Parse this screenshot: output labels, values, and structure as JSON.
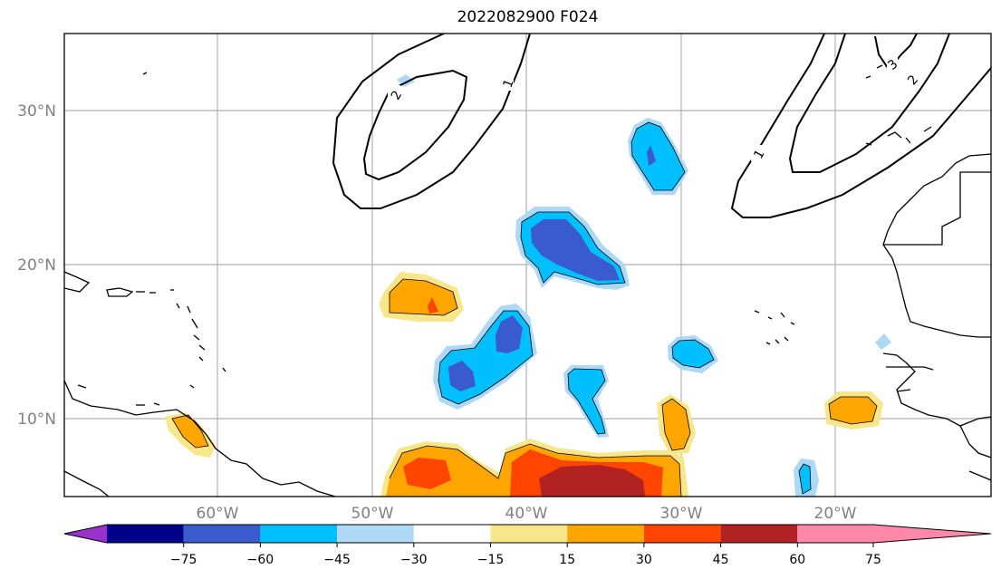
{
  "map": {
    "title": "2022082900 F024",
    "lat_labels": [
      "30°N",
      "20°N",
      "10°N"
    ],
    "lon_labels": [
      "60°W",
      "50°W",
      "40°W",
      "30°W",
      "20°W"
    ],
    "contour_labels": [
      "2",
      "1",
      "1",
      "2",
      "3"
    ]
  },
  "colorbar": {
    "ticks": [
      "−75",
      "−60",
      "−45",
      "−30",
      "−15",
      "15",
      "30",
      "45",
      "60",
      "75"
    ],
    "colors": [
      "#9932cc",
      "#00008b",
      "#3a5bcd",
      "#00bfff",
      "#add8f6",
      "#ffffff",
      "#f7e68a",
      "#ffa500",
      "#ff4500",
      "#b22222",
      "#ff88aa"
    ]
  }
}
